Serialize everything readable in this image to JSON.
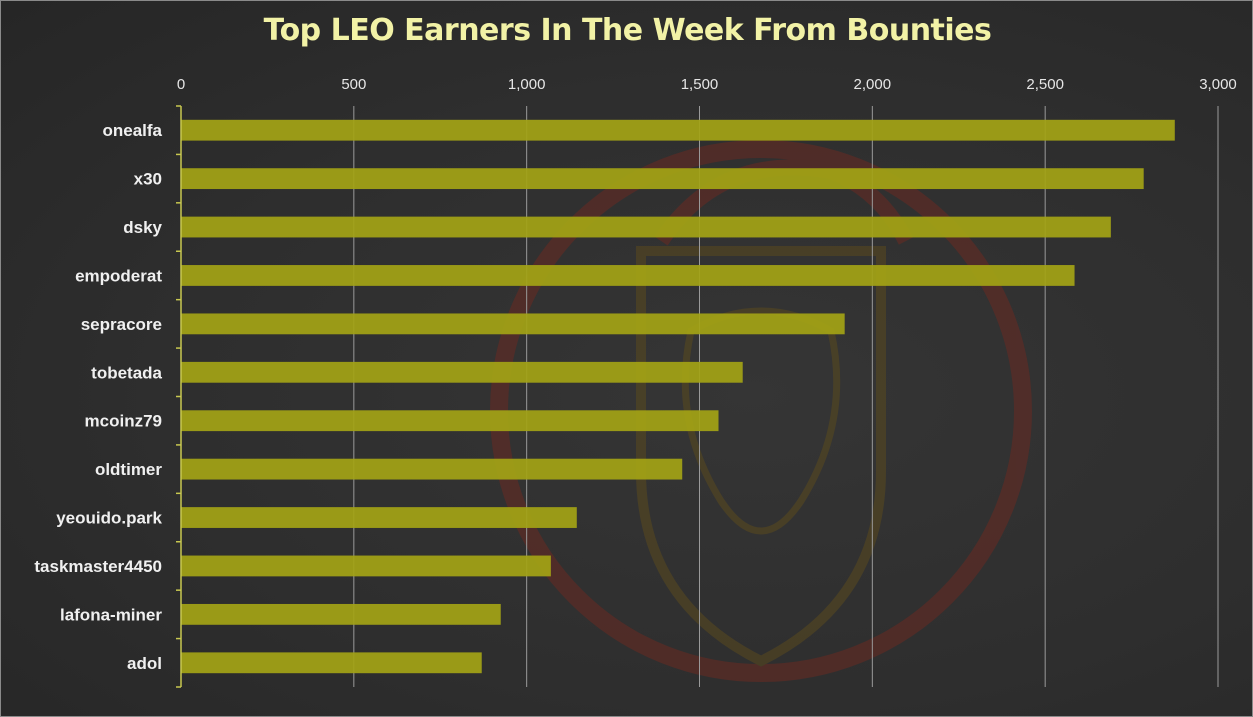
{
  "chart_data": {
    "type": "bar",
    "orientation": "horizontal",
    "title": "Top LEO Earners In The Week From Bounties",
    "categories": [
      "onealfa",
      "x30",
      "dsky",
      "empoderat",
      "sepracore",
      "tobetada",
      "mcoinz79",
      "oldtimer",
      "yeouido.park",
      "taskmaster4450",
      "lafona-miner",
      "adol"
    ],
    "values": [
      2875,
      2785,
      2690,
      2585,
      1920,
      1625,
      1555,
      1450,
      1145,
      1070,
      925,
      870
    ],
    "xlim": [
      0,
      3000
    ],
    "x_ticks": [
      0,
      500,
      1000,
      1500,
      2000,
      2500,
      3000
    ],
    "x_tick_labels": [
      "0",
      "500",
      "1,000",
      "1,500",
      "2,000",
      "2,500",
      "3,000"
    ],
    "x_axis_position": "top",
    "grid": true,
    "legend": "none",
    "colors": {
      "bar": "#a2a216",
      "title": "#f2f2a6",
      "axis": "#c8c850",
      "grid": "#9a9a9a",
      "background": "#2f2f2f",
      "watermark": "#6a2a22"
    },
    "background_icon": "lion-shield-watermark-icon"
  }
}
